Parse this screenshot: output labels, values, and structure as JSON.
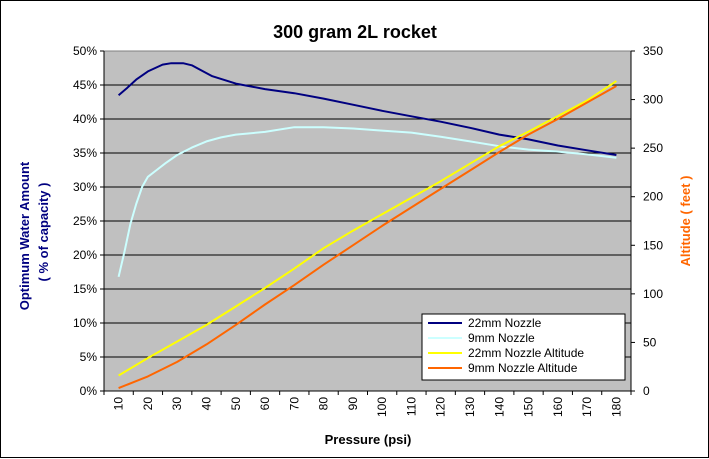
{
  "chart_data": {
    "type": "line",
    "title": "300 gram 2L rocket",
    "xlabel": "Pressure (psi)",
    "ylabel": "Optimum Water Amount",
    "ylabel_sub": "( % of capacity )",
    "y2label": "Altitude ( feet )",
    "x": [
      10,
      20,
      30,
      40,
      50,
      60,
      70,
      80,
      90,
      100,
      110,
      120,
      130,
      140,
      150,
      160,
      170,
      180
    ],
    "x_tick_labels": [
      "10",
      "20",
      "30",
      "40",
      "50",
      "60",
      "70",
      "80",
      "90",
      "100",
      "110",
      "120",
      "130",
      "140",
      "150",
      "160",
      "170",
      "180"
    ],
    "ylim": [
      0,
      50
    ],
    "y_tick_labels": [
      "0%",
      "5%",
      "10%",
      "15%",
      "20%",
      "25%",
      "30%",
      "35%",
      "40%",
      "45%",
      "50%"
    ],
    "y2lim": [
      0,
      350
    ],
    "y2_tick_labels": [
      "0",
      "50",
      "100",
      "150",
      "200",
      "250",
      "300",
      "350"
    ],
    "grid": true,
    "legend_position": "bottom-right",
    "series": [
      {
        "name": "22mm Nozzle",
        "axis": "left",
        "color": "#000080",
        "x": [
          10,
          13,
          16,
          20,
          25,
          28,
          32,
          35,
          38,
          42,
          50,
          60,
          70,
          80,
          90,
          100,
          110,
          120,
          130,
          140,
          150,
          160,
          170,
          180
        ],
        "values": [
          43.5,
          44.6,
          45.8,
          47.0,
          48.0,
          48.2,
          48.2,
          47.9,
          47.2,
          46.3,
          45.2,
          44.4,
          43.8,
          43.0,
          42.1,
          41.2,
          40.4,
          39.6,
          38.7,
          37.7,
          37.0,
          36.1,
          35.4,
          34.7
        ]
      },
      {
        "name": "9mm Nozzle",
        "axis": "left",
        "color": "#ccffff",
        "x": [
          10,
          12,
          14,
          16,
          18,
          20,
          23,
          26,
          30,
          35,
          40,
          45,
          50,
          60,
          70,
          80,
          90,
          100,
          110,
          120,
          130,
          140,
          150,
          160,
          170,
          180
        ],
        "values": [
          16.8,
          20.5,
          24.5,
          27.5,
          30.0,
          31.5,
          32.5,
          33.5,
          34.7,
          35.8,
          36.7,
          37.3,
          37.7,
          38.1,
          38.8,
          38.8,
          38.6,
          38.3,
          38.0,
          37.4,
          36.7,
          36.0,
          35.5,
          35.2,
          34.8,
          34.3
        ]
      },
      {
        "name": "22mm Nozzle Altitude",
        "axis": "right",
        "color": "#ffff00",
        "x": [
          10,
          20,
          30,
          40,
          50,
          60,
          70,
          80,
          90,
          100,
          110,
          120,
          130,
          140,
          150,
          160,
          170,
          180
        ],
        "values": [
          16,
          34,
          51,
          68,
          87,
          106,
          126,
          147,
          165,
          182,
          199,
          216,
          234,
          252,
          267,
          283,
          299,
          319
        ]
      },
      {
        "name": "9mm Nozzle Altitude",
        "axis": "right",
        "color": "#ff6600",
        "x": [
          10,
          20,
          30,
          40,
          50,
          60,
          70,
          80,
          90,
          100,
          110,
          120,
          130,
          140,
          150,
          160,
          170,
          180
        ],
        "values": [
          3,
          15,
          30,
          48,
          68,
          89,
          109,
          130,
          150,
          170,
          189,
          208,
          227,
          246,
          264,
          280,
          297,
          314
        ]
      }
    ],
    "colors": {
      "plot_background": "#c0c0c0",
      "left_axis_title": "#000080",
      "right_axis_title": "#ff6600"
    }
  }
}
